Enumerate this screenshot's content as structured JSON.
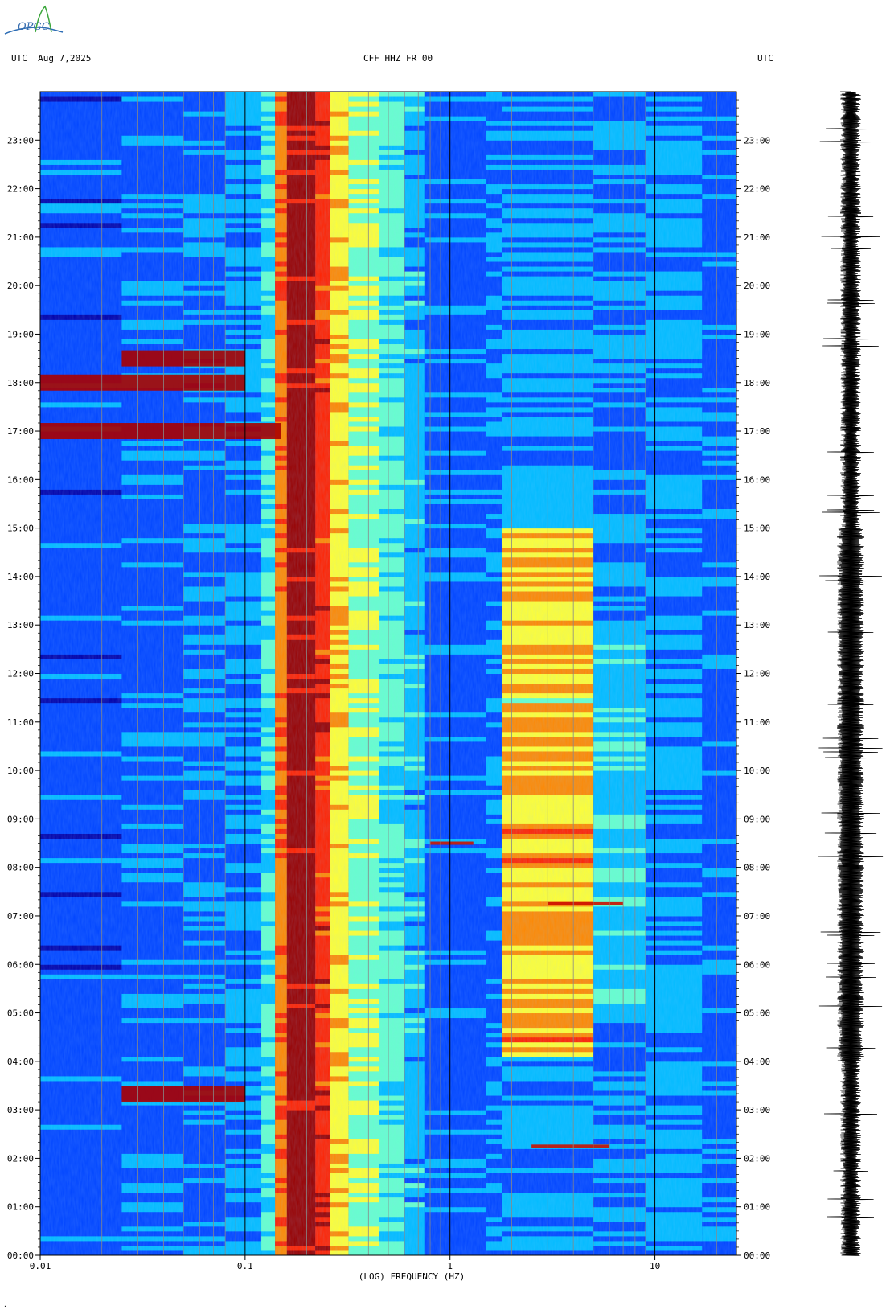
{
  "header": {
    "left": "UTC  Aug 7,2025",
    "center": "CFF HHZ FR 00",
    "right": "UTC"
  },
  "logo": {
    "text": "OPGC"
  },
  "footer_mark": "·",
  "colors": {
    "palette": [
      "#0000aa",
      "#0044ff",
      "#00bbff",
      "#66ffcc",
      "#ffff33",
      "#ff8800",
      "#ff2200",
      "#990000"
    ],
    "trace": "#000000"
  },
  "chart_data": [
    {
      "type": "heatmap",
      "title": "",
      "xlabel": "(LOG) FREQUENCY (HZ)",
      "ylabel": "",
      "xscale": "log",
      "xlim": [
        0.01,
        25
      ],
      "ylim": [
        "00:00",
        "24:00"
      ],
      "x_tick_labels": [
        "0.01",
        "0.1",
        "1",
        "10"
      ],
      "x_ticks": [
        0.01,
        0.1,
        1,
        10
      ],
      "y_tick_labels": [
        "00:00",
        "01:00",
        "02:00",
        "03:00",
        "04:00",
        "05:00",
        "06:00",
        "07:00",
        "08:00",
        "09:00",
        "10:00",
        "11:00",
        "12:00",
        "13:00",
        "14:00",
        "15:00",
        "16:00",
        "17:00",
        "18:00",
        "19:00",
        "20:00",
        "21:00",
        "22:00",
        "23:00"
      ],
      "y_axis_both_sides": true,
      "colormap": "jet",
      "dominant_band_hz": [
        0.15,
        0.25
      ],
      "high_energy_daytime_band_hz": [
        1.8,
        5
      ],
      "high_energy_hours": [
        "04:00",
        "15:00"
      ],
      "events": [
        {
          "time": "02:15",
          "freq_hz": [
            2.5,
            6
          ]
        },
        {
          "time": "03:20",
          "freq_hz": [
            0.025,
            0.1
          ]
        },
        {
          "time": "07:15",
          "freq_hz": [
            3,
            7
          ]
        },
        {
          "time": "08:30",
          "freq_hz": [
            0.8,
            1.3
          ]
        },
        {
          "time": "17:00",
          "freq_hz": [
            0.01,
            0.15
          ]
        },
        {
          "time": "18:00",
          "freq_hz": [
            0.01,
            0.1
          ]
        },
        {
          "time": "18:30",
          "freq_hz": [
            0.025,
            0.1
          ]
        }
      ]
    },
    {
      "type": "line",
      "title": "",
      "description_series": "seismic trace",
      "ylim": [
        "00:00",
        "24:00"
      ],
      "orientation": "vertical"
    }
  ]
}
